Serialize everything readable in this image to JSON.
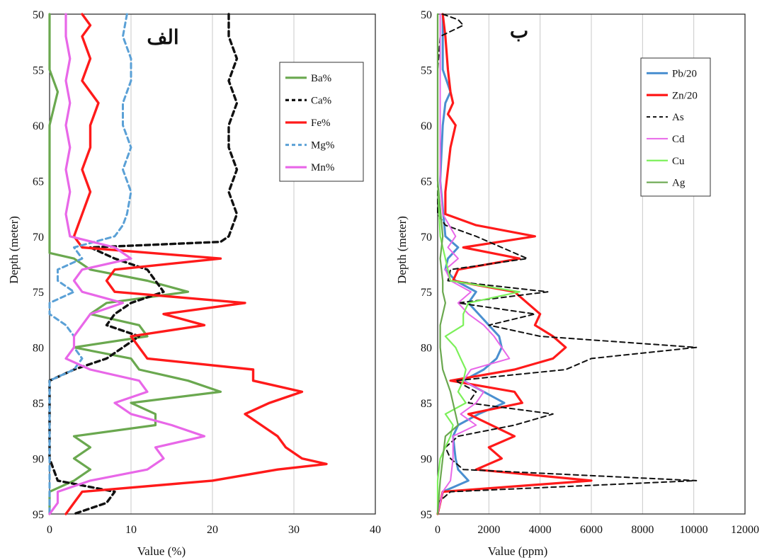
{
  "chart_data": [
    {
      "type": "line",
      "title": "الف",
      "xlabel": "Value (%)",
      "ylabel": "Depth (meter)",
      "xlim": [
        0,
        40
      ],
      "ylim": [
        50,
        95
      ],
      "y_inverted": true,
      "xticks": [
        "0",
        "10",
        "20",
        "30",
        "40"
      ],
      "yticks": [
        "50",
        "55",
        "60",
        "65",
        "70",
        "75",
        "80",
        "85",
        "90",
        "95"
      ],
      "grid": "vertical",
      "legend_placement": "top-right",
      "series": [
        {
          "name": "Ba%",
          "color": "#6aa84f",
          "dash": "solid",
          "depth": [
            50,
            55,
            57,
            60,
            65,
            70,
            71.5,
            72,
            73,
            74,
            75,
            76,
            77,
            78,
            79,
            80,
            81,
            82,
            83,
            84,
            85,
            86,
            87,
            88,
            89,
            90,
            91,
            92,
            93,
            94,
            95
          ],
          "values": [
            0,
            0,
            1,
            0,
            0,
            0,
            0,
            3,
            5,
            12,
            17,
            7,
            5,
            11,
            12,
            3,
            10,
            11,
            17,
            21,
            10,
            13,
            13,
            3,
            5,
            3,
            5,
            3,
            0,
            0,
            0
          ]
        },
        {
          "name": "Ca%",
          "color": "#111111",
          "dash": "dashed",
          "depth": [
            50,
            52,
            54,
            56,
            58,
            60,
            62,
            64,
            66,
            68,
            70,
            70.5,
            71,
            72,
            73,
            74,
            75,
            76,
            77,
            78,
            79,
            80,
            81,
            82,
            83,
            84,
            86,
            88,
            90,
            92,
            93,
            94,
            95
          ],
          "values": [
            22,
            22,
            23,
            22,
            23,
            22,
            22,
            23,
            22,
            23,
            22,
            21,
            5,
            8,
            12,
            13,
            14,
            10,
            8,
            7,
            11,
            9,
            7,
            3,
            0,
            0,
            0,
            0,
            0,
            1,
            8,
            7,
            3
          ]
        },
        {
          "name": "Fe%",
          "color": "#ff1a1a",
          "dash": "solid",
          "depth": [
            50,
            51,
            52,
            54,
            56,
            58,
            60,
            62,
            64,
            66,
            68,
            70,
            71,
            72,
            73,
            74,
            75,
            76,
            77,
            78,
            79,
            80,
            81,
            82,
            83,
            84,
            85,
            86,
            87,
            88,
            89,
            90,
            90.5,
            91,
            92,
            93,
            94,
            95
          ],
          "values": [
            4,
            5,
            4,
            5,
            4,
            6,
            5,
            5,
            4,
            5,
            4,
            3,
            4,
            21,
            8,
            7,
            8,
            24,
            14,
            19,
            10,
            11,
            12,
            25,
            25,
            31,
            27,
            24,
            26,
            28,
            29,
            31,
            34,
            28,
            20,
            4,
            3,
            2
          ]
        },
        {
          "name": "Mg%",
          "color": "#5aa0d6",
          "dash": "dashed",
          "depth": [
            50,
            52,
            54,
            56,
            58,
            60,
            62,
            64,
            66,
            68,
            69,
            70,
            71,
            72,
            73,
            74,
            75,
            76,
            77,
            78,
            79,
            80,
            81,
            82,
            83,
            84,
            85,
            86,
            88,
            90,
            92,
            94,
            95
          ],
          "values": [
            9.5,
            9,
            10,
            10,
            9,
            9,
            10,
            9,
            10,
            9.5,
            9,
            8,
            3,
            4,
            1,
            1,
            3,
            0,
            0,
            2,
            3,
            3,
            4,
            3,
            0,
            0,
            0,
            0,
            0,
            0,
            0,
            0,
            0
          ]
        },
        {
          "name": "Mn%",
          "color": "#e867e8",
          "dash": "solid",
          "depth": [
            50,
            52,
            54,
            56,
            58,
            60,
            62,
            64,
            66,
            68,
            70,
            71,
            72,
            73,
            74,
            75,
            76,
            77,
            78,
            79,
            80,
            81,
            82,
            83,
            84,
            85,
            86,
            87,
            88,
            89,
            90,
            91,
            92,
            93,
            94,
            95
          ],
          "values": [
            2,
            2,
            2.5,
            2,
            2.5,
            2,
            2.5,
            2,
            2.5,
            2,
            2.5,
            8,
            10,
            4,
            3,
            4,
            9,
            5,
            4,
            3,
            3,
            2,
            5,
            11,
            12,
            8,
            10,
            15,
            19,
            13,
            14,
            12,
            5,
            1,
            1,
            0
          ]
        }
      ]
    },
    {
      "type": "line",
      "title": "ب",
      "xlabel": "Value (ppm)",
      "ylabel": "Depth (meter)",
      "xlim": [
        0,
        12000
      ],
      "ylim": [
        50,
        95
      ],
      "y_inverted": true,
      "xticks": [
        "0",
        "2000",
        "4000",
        "6000",
        "8000",
        "10000",
        "12000"
      ],
      "yticks": [
        "50",
        "55",
        "60",
        "65",
        "70",
        "75",
        "80",
        "85",
        "90",
        "95"
      ],
      "grid": "vertical",
      "legend_placement": "top-right",
      "series": [
        {
          "name": "Pb/20",
          "color": "#4a8fd0",
          "dash": "solid",
          "depth": [
            50,
            55,
            57,
            58,
            60,
            65,
            70,
            71,
            72,
            73,
            74,
            75,
            76,
            77,
            78,
            79,
            80,
            81,
            82,
            83,
            84,
            85,
            86,
            87,
            88,
            90,
            91,
            92,
            93,
            95
          ],
          "values": [
            200,
            200,
            500,
            300,
            200,
            100,
            300,
            800,
            400,
            300,
            700,
            1500,
            1200,
            1600,
            2000,
            2400,
            2500,
            2300,
            1800,
            1000,
            1800,
            2600,
            1600,
            800,
            600,
            700,
            800,
            1200,
            200,
            0
          ]
        },
        {
          "name": "Zn/20",
          "color": "#ff1a1a",
          "dash": "solid",
          "depth": [
            50,
            52,
            55,
            57,
            58,
            59,
            60,
            62,
            64,
            66,
            68,
            69,
            70,
            71,
            72,
            73,
            74,
            75,
            76,
            77,
            78,
            79,
            80,
            81,
            82,
            83,
            84,
            85,
            86,
            88,
            89,
            90,
            91,
            92,
            93,
            95
          ],
          "values": [
            200,
            300,
            400,
            500,
            600,
            400,
            700,
            500,
            400,
            300,
            300,
            1500,
            3800,
            1000,
            3200,
            800,
            600,
            3000,
            3500,
            4000,
            3800,
            4500,
            5000,
            4500,
            3000,
            500,
            3000,
            3300,
            1200,
            3000,
            2000,
            2500,
            1500,
            6000,
            200,
            0
          ]
        },
        {
          "name": "As",
          "color": "#111111",
          "dash": "dashed",
          "depth": [
            50,
            50.5,
            51,
            52,
            55,
            58,
            60,
            65,
            68,
            69,
            70,
            71,
            72,
            73,
            74,
            75,
            76,
            77,
            78,
            79,
            80,
            81,
            82,
            83,
            84,
            85,
            86,
            87,
            88,
            89,
            90,
            91,
            92,
            93,
            94,
            95
          ],
          "values": [
            200,
            800,
            1000,
            100,
            0,
            0,
            0,
            0,
            0,
            300,
            1500,
            2500,
            3500,
            500,
            400,
            4300,
            800,
            3800,
            2000,
            4000,
            10100,
            6000,
            5000,
            700,
            1500,
            1200,
            4500,
            3000,
            800,
            300,
            500,
            1000,
            10100,
            500,
            0,
            0
          ]
        },
        {
          "name": "Cd",
          "color": "#e867e8",
          "dash": "solid",
          "depth": [
            50,
            55,
            60,
            65,
            68,
            70,
            71,
            72,
            73,
            74,
            75,
            76,
            77,
            78,
            79,
            80,
            81,
            82,
            83,
            84,
            85,
            86,
            87,
            88,
            90,
            92,
            93,
            95
          ],
          "values": [
            100,
            100,
            100,
            100,
            200,
            700,
            400,
            800,
            300,
            500,
            1300,
            800,
            1200,
            1800,
            2200,
            2500,
            2800,
            1300,
            1000,
            1800,
            1500,
            900,
            1500,
            600,
            600,
            500,
            200,
            0
          ]
        },
        {
          "name": "Cu",
          "color": "#7cf05a",
          "dash": "solid",
          "depth": [
            50,
            55,
            60,
            65,
            70,
            72,
            74,
            75,
            76,
            77,
            78,
            79,
            80,
            81,
            82,
            83,
            84,
            85,
            86,
            87,
            88,
            90,
            92,
            95
          ],
          "values": [
            0,
            0,
            0,
            0,
            100,
            300,
            500,
            3200,
            1200,
            1000,
            1000,
            300,
            700,
            900,
            1100,
            1000,
            800,
            1100,
            300,
            600,
            500,
            100,
            0,
            0
          ]
        },
        {
          "name": "Ag",
          "color": "#6aa84f",
          "dash": "solid",
          "depth": [
            50,
            55,
            60,
            65,
            70,
            72,
            74,
            75,
            76,
            78,
            80,
            82,
            84,
            85,
            86,
            87,
            88,
            90,
            92,
            95
          ],
          "values": [
            0,
            0,
            0,
            0,
            200,
            100,
            200,
            200,
            300,
            100,
            100,
            200,
            500,
            600,
            700,
            800,
            300,
            200,
            100,
            0
          ]
        }
      ]
    }
  ]
}
